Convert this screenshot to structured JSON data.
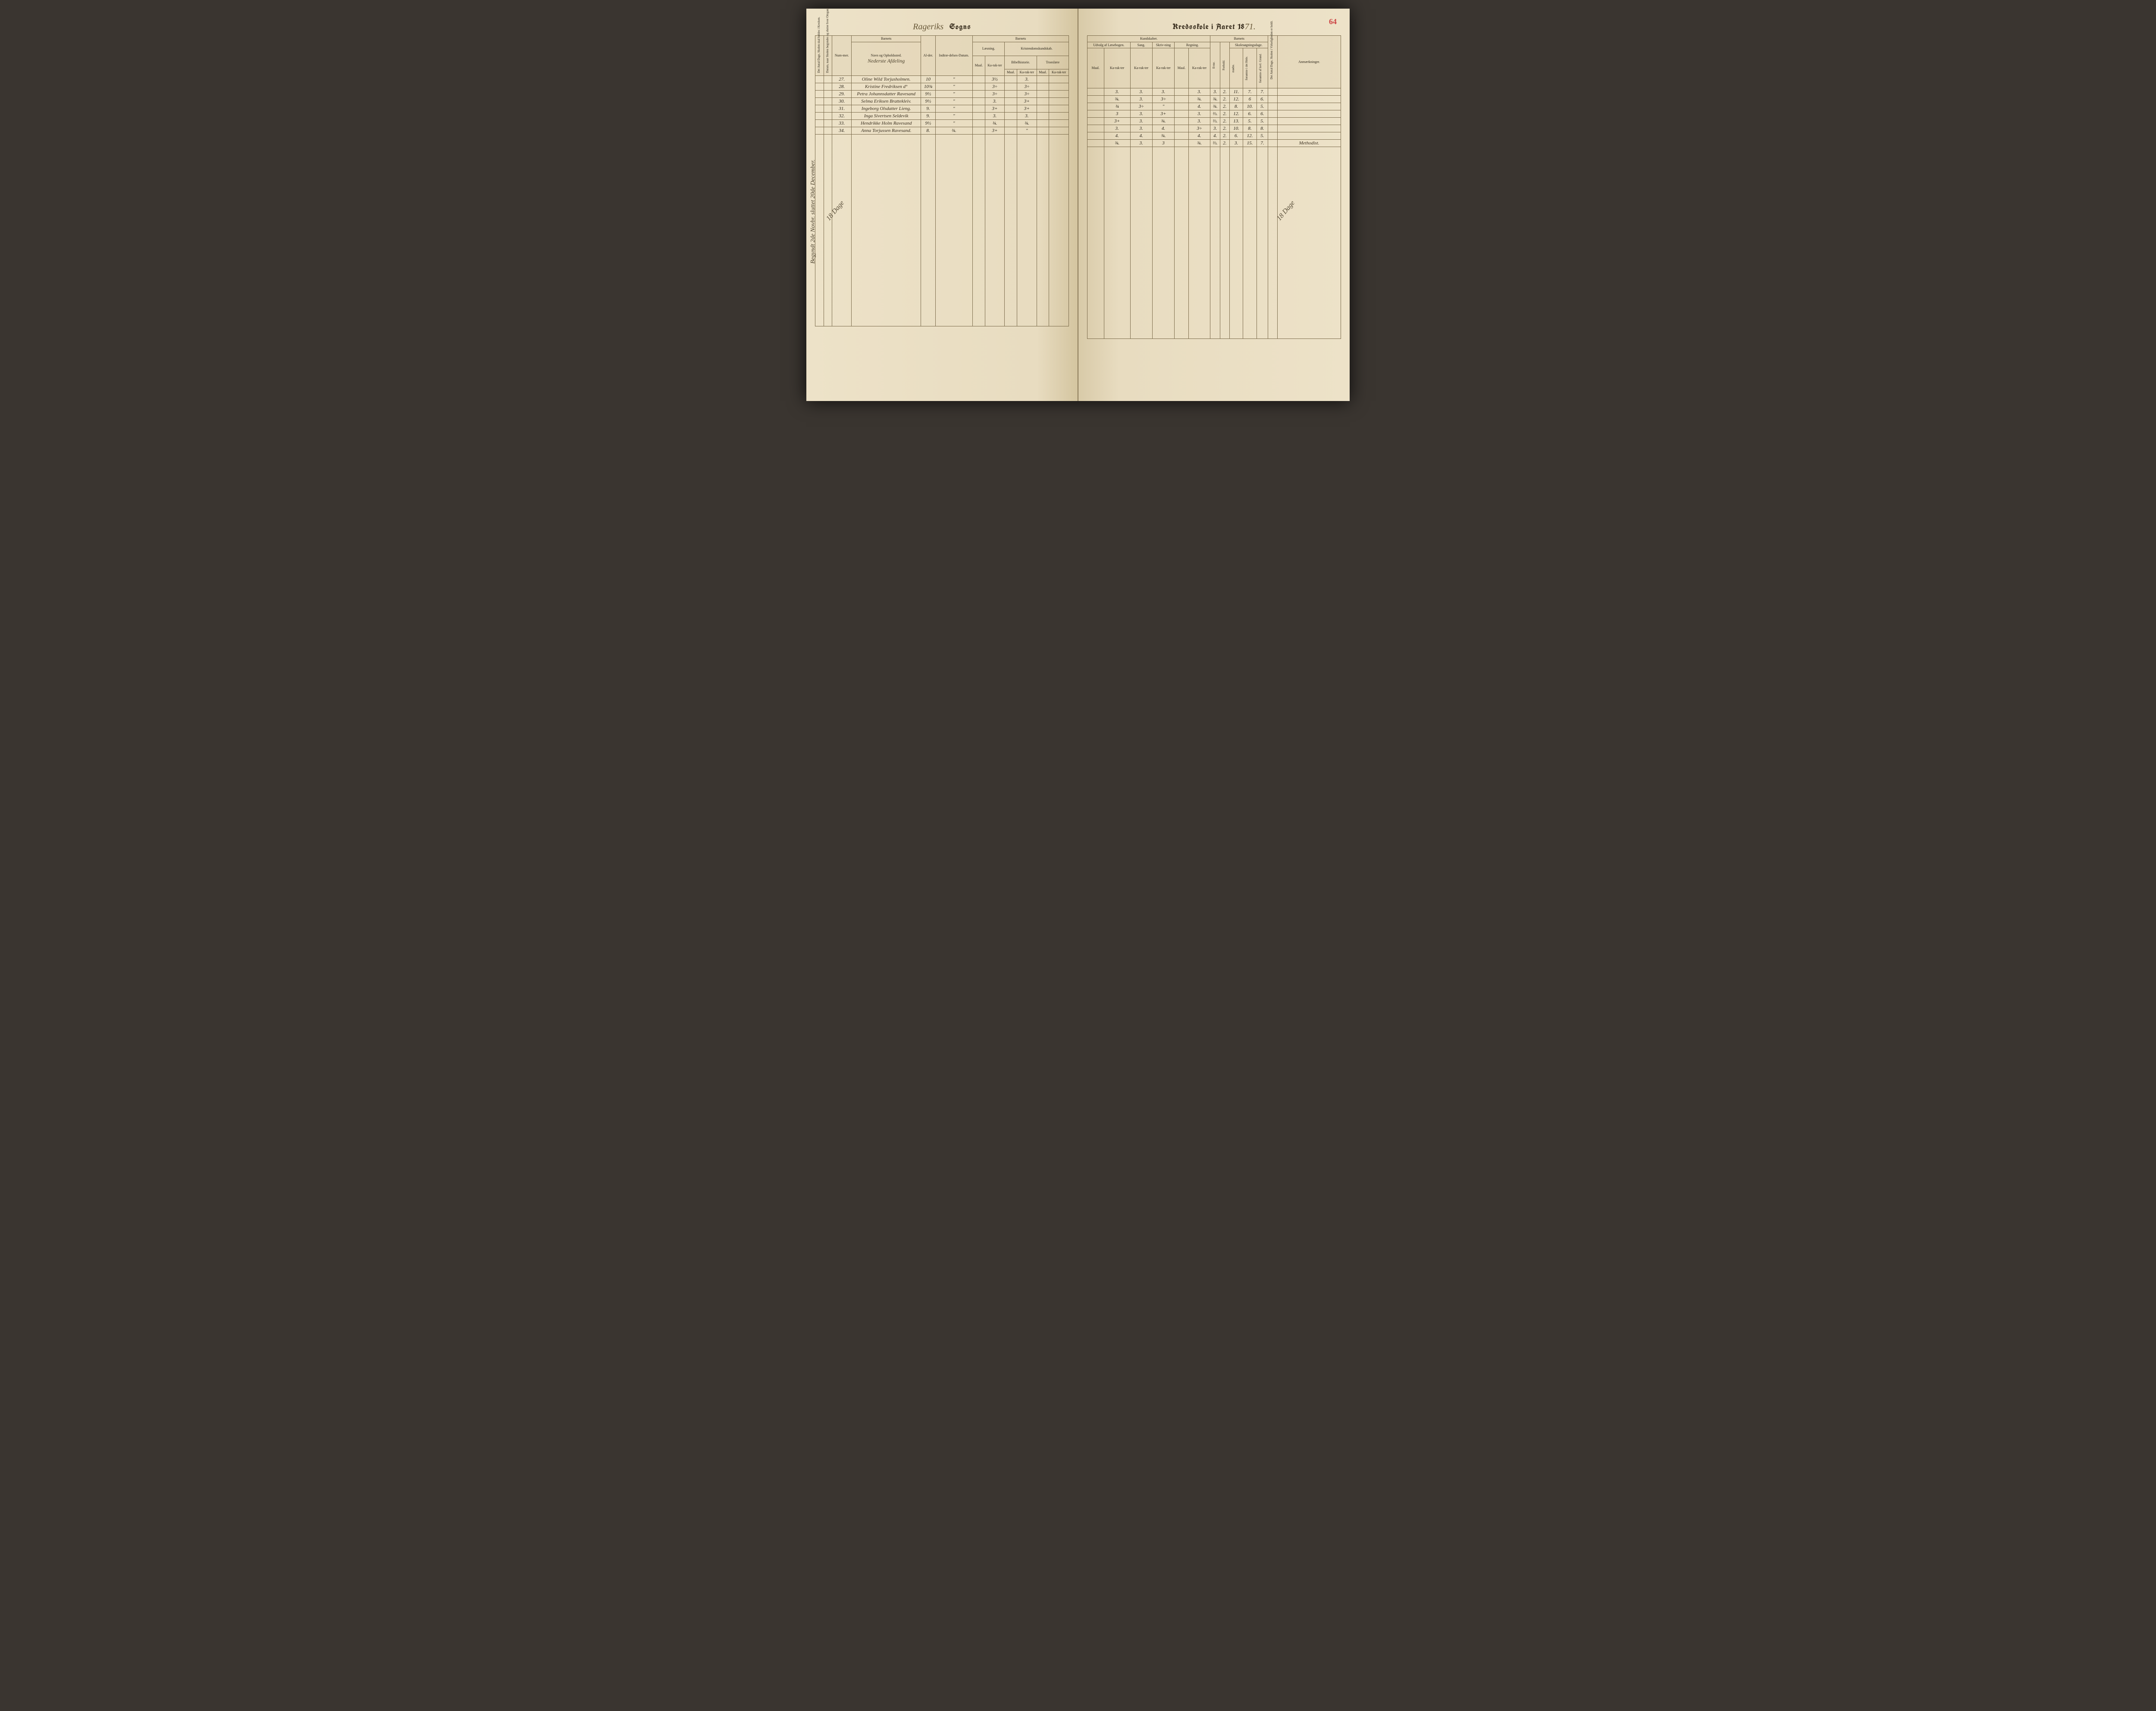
{
  "pageNumber": "64",
  "titleLeft": {
    "script": "Rageriks",
    "black": "Sogns"
  },
  "titleRight": {
    "black": "Kredsskole i Aaret 18",
    "script": "71."
  },
  "headers": {
    "vcol1": "Det Antal Dage, Skolen skal holdes i Kredsen.",
    "vcol2": "Datum, naar Skolen begyndes og slutter hver Omgang",
    "nummer": "Num-mer.",
    "barnets": "Barnets",
    "navn": "Navn og Opholdssted.",
    "navnSub": "Nederste Afdeling",
    "alder": "Al-der.",
    "indtr": "Indtræ-delses-Datum.",
    "laesning": "Læsning.",
    "kristen": "Kristendomskundskab.",
    "maal": "Maal.",
    "karakter": "Ka-rak-ter",
    "bibel": "Bibelhistorie.",
    "troes": "Troeslære",
    "kundskaber": "Kundskaber.",
    "udvalg": "Udvalg af Læsebogen.",
    "sang": "Sang.",
    "skriv": "Skriv-ning",
    "regning": "Regning.",
    "evne": "Evne.",
    "forhold": "Forhold.",
    "skoledage": "Skolesøgningsdage.",
    "modte": "mødte.",
    "forsomte1": "forsømte i det Hele.",
    "forsomte2": "forsømte af lovl. Grund.",
    "vcol3": "Det Antal Dage, Skolen i Virkeligheden er holdt.",
    "anm": "Anmærkninger."
  },
  "marginNote": "Begyndt 2de Novbr. sluttet 20de December.",
  "diagLeft": "18 Dage",
  "diagRight": "18 Dage",
  "rows": [
    {
      "n": "27.",
      "name": "Oline Wild Torjusholmen.",
      "age": "10",
      "dt": "\"",
      "l1": "",
      "l2": "3½",
      "b1": "",
      "b2": "3.",
      "t1": "",
      "u1": "",
      "u2": "3.",
      "sa": "3.",
      "sk": "3.",
      "r1": "",
      "r2": "3.",
      "ev": "3.",
      "fo": "2.",
      "m": "11.",
      "f1": "7.",
      "f2": "7.",
      "anm": ""
    },
    {
      "n": "28.",
      "name": "Kristine Fredriksen  d°",
      "age": "10¾",
      "dt": "\"",
      "l1": "",
      "l2": "3÷",
      "b1": "",
      "b2": "3÷",
      "t1": "",
      "u1": "",
      "u2": "¾.",
      "sa": "3.",
      "sk": "3÷",
      "r1": "",
      "r2": "¾.",
      "ev": "¾.",
      "fo": "2.",
      "m": "12.",
      "f1": "6",
      "f2": "6.",
      "anm": ""
    },
    {
      "n": "29.",
      "name": "Petra Johannsdatter Ravesand",
      "age": "9½",
      "dt": "\"",
      "l1": "",
      "l2": "3÷",
      "b1": "",
      "b2": "3÷",
      "t1": "",
      "u1": "",
      "u2": "¾",
      "sa": "3÷",
      "sk": "\"",
      "r1": "",
      "r2": "4.",
      "ev": "¾.",
      "fo": "2.",
      "m": "8.",
      "f1": "10.",
      "f2": "5.",
      "anm": ""
    },
    {
      "n": "30.",
      "name": "Selma Eriksen Brattekleiv.",
      "age": "9½",
      "dt": "\"",
      "l1": "",
      "l2": "3.",
      "b1": "",
      "b2": "3+",
      "t1": "",
      "u1": "",
      "u2": "3",
      "sa": "3.",
      "sk": "3+",
      "r1": "",
      "r2": "3.",
      "ev": "⅔.",
      "fo": "2.",
      "m": "12.",
      "f1": "6.",
      "f2": "6.",
      "anm": ""
    },
    {
      "n": "31.",
      "name": "Ingeborg Olsdatter Lieng.",
      "age": "9.",
      "dt": "\"",
      "l1": "",
      "l2": "3+",
      "b1": "",
      "b2": "3+",
      "t1": "",
      "u1": "",
      "u2": "3+",
      "sa": "3.",
      "sk": "¾.",
      "r1": "",
      "r2": "3.",
      "ev": "⅔.",
      "fo": "2.",
      "m": "13.",
      "f1": "5.",
      "f2": "5.",
      "anm": ""
    },
    {
      "n": "32.",
      "name": "Inga Sivertsen Seldevik",
      "age": "9.",
      "dt": "\"",
      "l1": "",
      "l2": "3.",
      "b1": "",
      "b2": "3.",
      "t1": "",
      "u1": "",
      "u2": "3.",
      "sa": "3.",
      "sk": "4.",
      "r1": "",
      "r2": "3÷",
      "ev": "3.",
      "fo": "2.",
      "m": "10.",
      "f1": "8.",
      "f2": "8.",
      "anm": ""
    },
    {
      "n": "33.",
      "name": "Hendrikke Holm Ravesand",
      "age": "9½",
      "dt": "\"",
      "l1": "",
      "l2": "¾.",
      "b1": "",
      "b2": "¾.",
      "t1": "",
      "u1": "",
      "u2": "4.",
      "sa": "4.",
      "sk": "¾.",
      "r1": "",
      "r2": "4.",
      "ev": "4.",
      "fo": "2.",
      "m": "6.",
      "f1": "12.",
      "f2": "5.",
      "anm": ""
    },
    {
      "n": "34.",
      "name": "Anna Torjussen Ravesand.",
      "age": "8.",
      "dt": "¾.",
      "l1": "",
      "l2": "3+",
      "b1": "",
      "b2": "\"",
      "t1": "",
      "u1": "",
      "u2": "¾.",
      "sa": "3.",
      "sk": "3",
      "r1": "",
      "r2": "¾.",
      "ev": "⅔.",
      "fo": "2.",
      "m": "3.",
      "f1": "15.",
      "f2": "7.",
      "anm": "Methodist."
    }
  ]
}
